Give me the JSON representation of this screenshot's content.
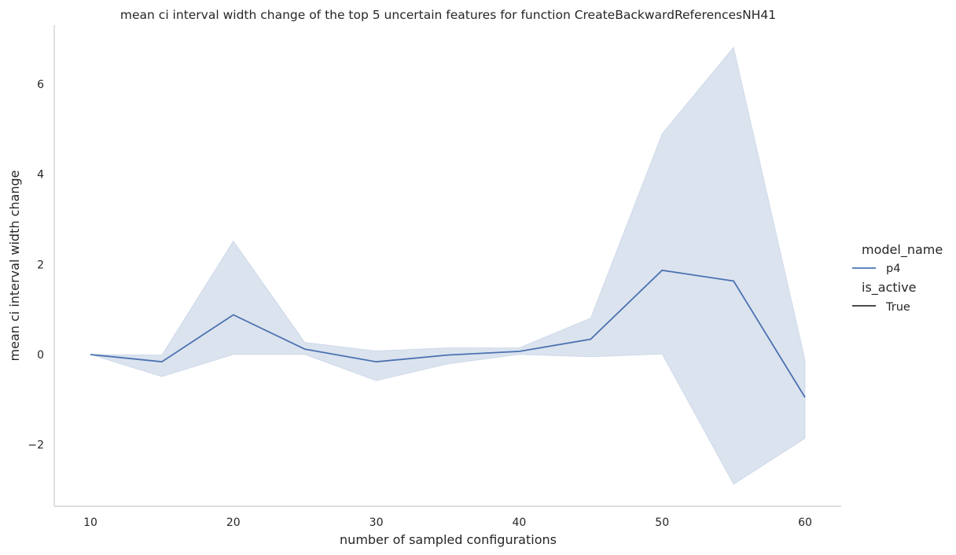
{
  "chart_data": {
    "type": "line",
    "title": "mean ci interval width change of the top 5 uncertain features for function CreateBackwardReferencesNH41",
    "xlabel": "number of sampled configurations",
    "ylabel": "mean ci interval width change",
    "x": [
      10,
      15,
      20,
      25,
      30,
      35,
      40,
      45,
      50,
      55,
      60
    ],
    "xticks": [
      10,
      20,
      30,
      40,
      50,
      60
    ],
    "yticks": [
      -2,
      0,
      2,
      4,
      6
    ],
    "ytick_labels": [
      "−2",
      "0",
      "2",
      "4",
      "6"
    ],
    "xlim": [
      7.5,
      62.5
    ],
    "ylim": [
      -3.4,
      7.3
    ],
    "grid": false,
    "series": [
      {
        "name": "p4",
        "color": "#4c72b0",
        "values": [
          0.0,
          -0.16,
          0.88,
          0.12,
          -0.16,
          -0.01,
          0.07,
          0.34,
          1.87,
          1.63,
          -0.95
        ],
        "ci_lower": [
          0.0,
          -0.49,
          0.0,
          0.0,
          -0.58,
          -0.21,
          0.0,
          -0.05,
          0.01,
          -2.88,
          -1.86
        ],
        "ci_upper": [
          0.0,
          -0.01,
          2.52,
          0.27,
          0.08,
          0.15,
          0.15,
          0.81,
          4.9,
          6.82,
          -0.12
        ]
      }
    ],
    "legend": {
      "placement": "right",
      "hue_title": "model_name",
      "hue_items": [
        {
          "label": "p4",
          "color": "#4c72b0"
        }
      ],
      "style_title": "is_active",
      "style_items": [
        {
          "label": "True",
          "color": "#333333"
        }
      ]
    }
  }
}
